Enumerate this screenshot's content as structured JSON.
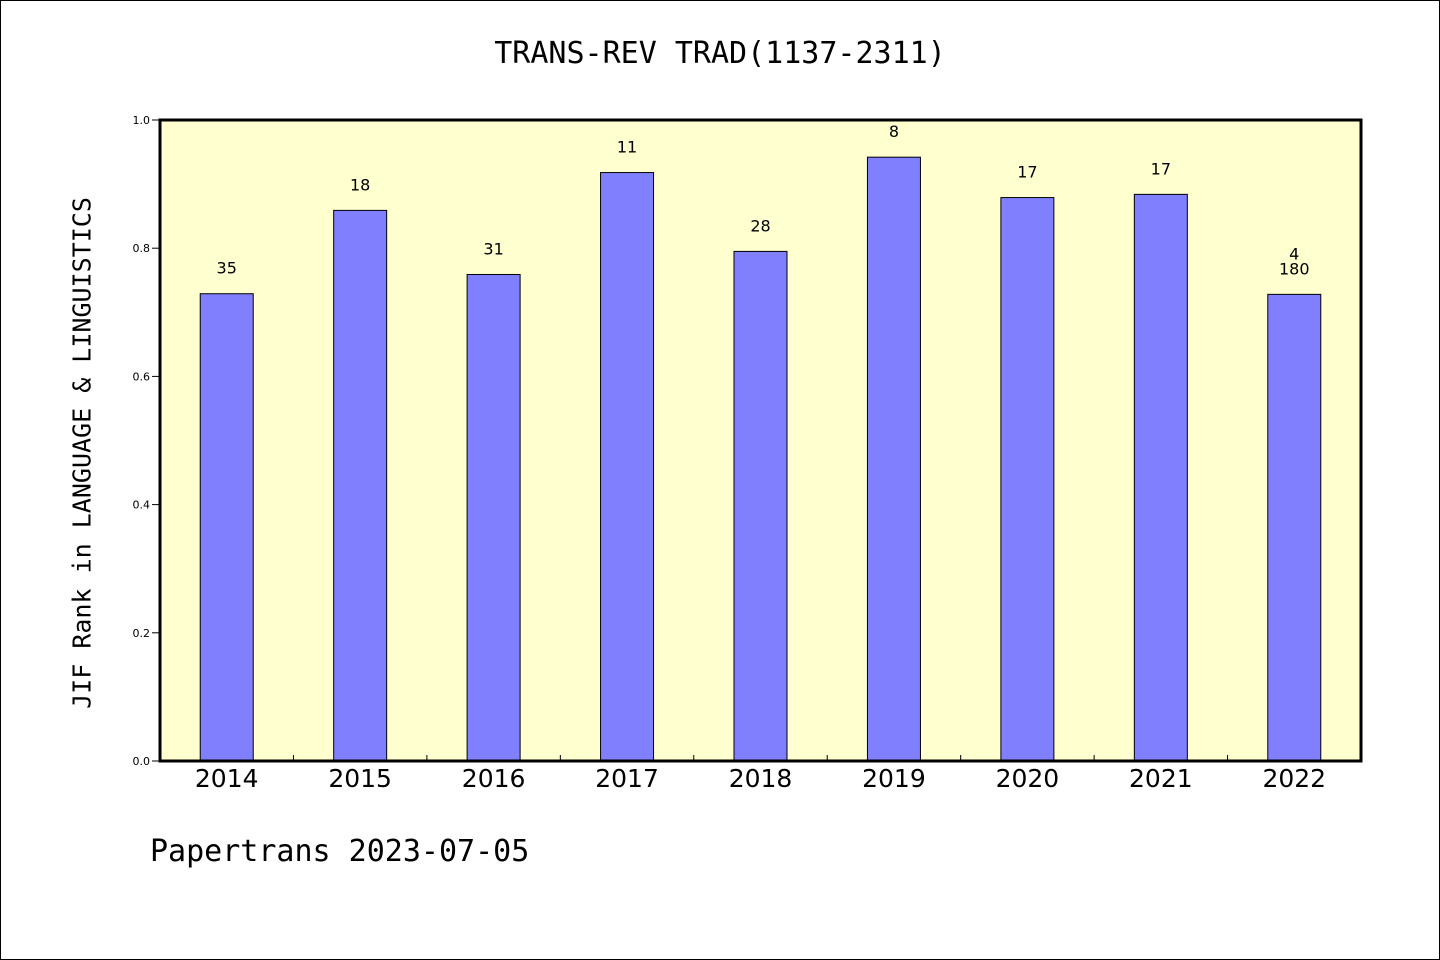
{
  "chart_data": {
    "type": "bar",
    "title": "TRANS-REV TRAD(1137-2311)",
    "ylabel": "JIF Rank in LANGUAGE & LINGUISTICS",
    "xlabel": "",
    "categories": [
      "2014",
      "2015",
      "2016",
      "2017",
      "2018",
      "2019",
      "2020",
      "2021",
      "2022"
    ],
    "values": [
      0.729,
      0.859,
      0.759,
      0.918,
      0.795,
      0.942,
      0.879,
      0.884,
      0.728
    ],
    "bar_labels": [
      "35",
      "18",
      "31",
      "11",
      "28",
      "8",
      "17",
      "17",
      "4\n180"
    ],
    "ylim": [
      0,
      1.0
    ],
    "yticks": [
      "0.0",
      "0.2",
      "0.4",
      "0.6",
      "0.8",
      "1.0"
    ],
    "grid": false,
    "colors": {
      "bar": "#8080ff",
      "plot_background": "#ffffd0"
    }
  },
  "footer": "Papertrans 2023-07-05"
}
